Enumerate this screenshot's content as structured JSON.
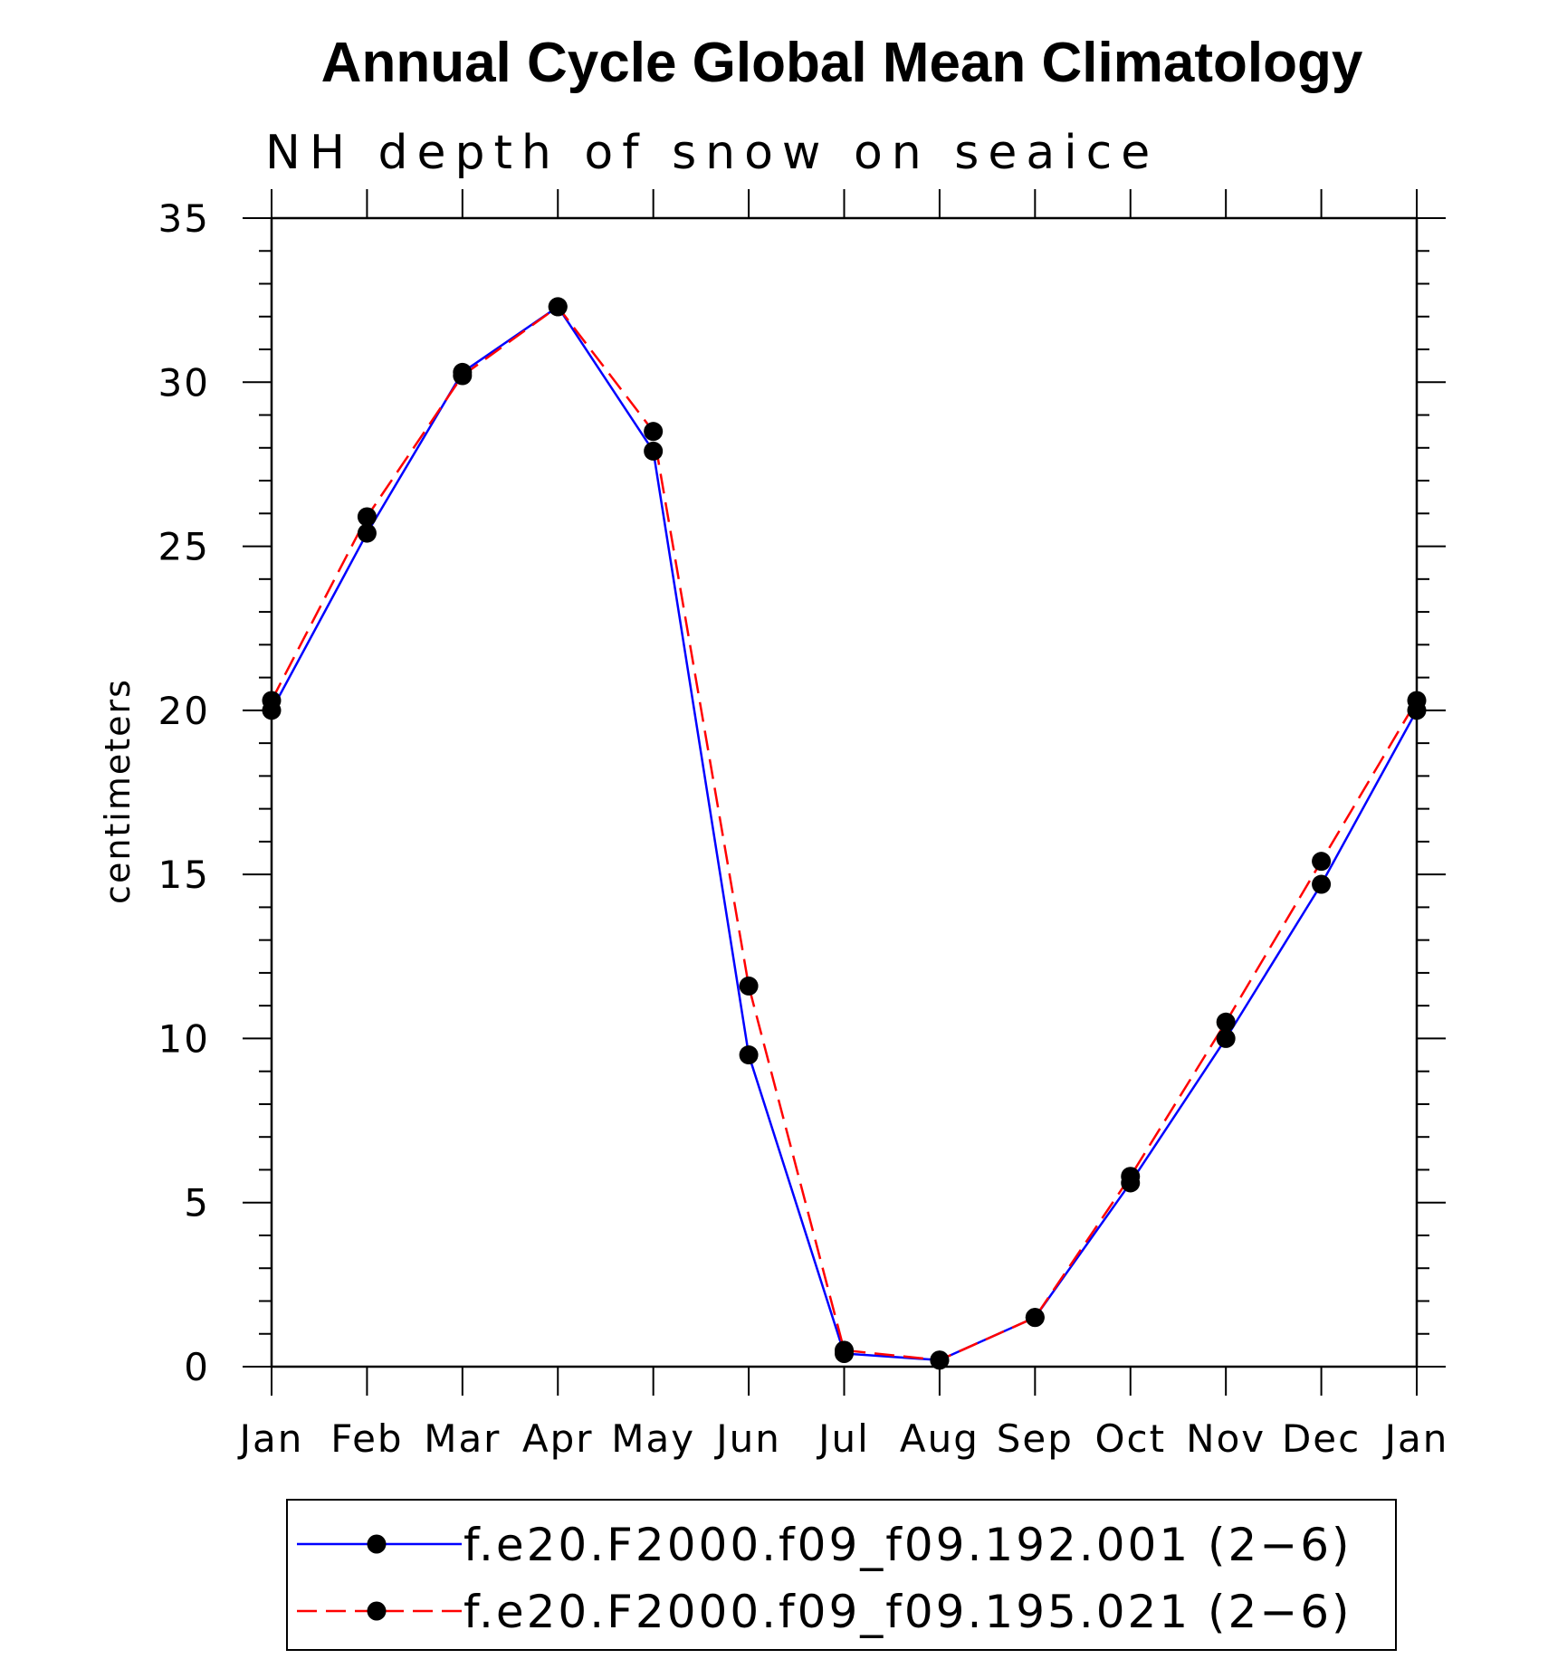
{
  "chart_data": {
    "type": "line",
    "title": "Annual Cycle Global Mean Climatology",
    "subtitle": "NH depth of snow on seaice",
    "xlabel": "",
    "ylabel": "centimeters",
    "categories": [
      "Jan",
      "Feb",
      "Mar",
      "Apr",
      "May",
      "Jun",
      "Jul",
      "Aug",
      "Sep",
      "Oct",
      "Nov",
      "Dec",
      "Jan"
    ],
    "ylim": [
      0,
      35
    ],
    "yticks": [
      0,
      5,
      10,
      15,
      20,
      25,
      30,
      35
    ],
    "series": [
      {
        "name": "f.e20.F2000.f09_f09.192.001 (2−6)",
        "color": "#0000ff",
        "line_style": "solid",
        "marker": "circle",
        "values": [
          20.0,
          25.4,
          30.3,
          32.3,
          27.9,
          9.5,
          0.4,
          0.2,
          1.5,
          5.6,
          10.0,
          14.7,
          20.0
        ]
      },
      {
        "name": "f.e20.F2000.f09_f09.195.021 (2−6)",
        "color": "#ff0000",
        "line_style": "dashed",
        "marker": "circle",
        "values": [
          20.3,
          25.9,
          30.2,
          32.3,
          28.5,
          11.6,
          0.5,
          0.2,
          1.5,
          5.8,
          10.5,
          15.4,
          20.3
        ]
      }
    ],
    "legend_position": "bottom"
  }
}
